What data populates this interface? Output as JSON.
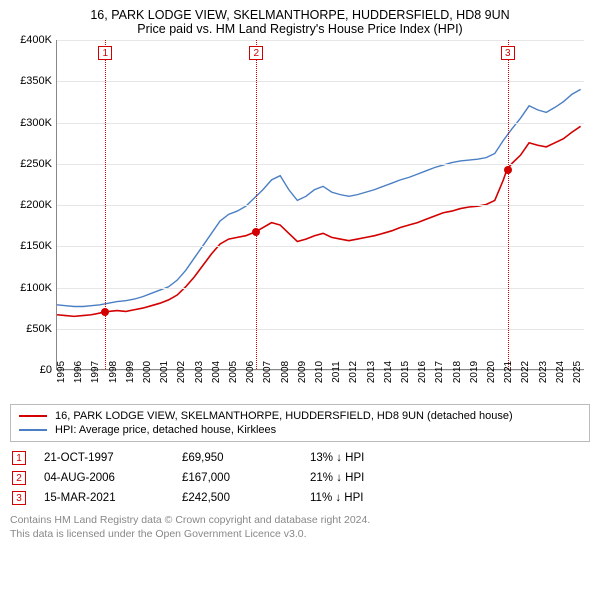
{
  "titles": {
    "line1": "16, PARK LODGE VIEW, SKELMANTHORPE, HUDDERSFIELD, HD8 9UN",
    "line2": "Price paid vs. HM Land Registry's House Price Index (HPI)"
  },
  "chart": {
    "type": "line",
    "background_color": "#ffffff",
    "grid_color": "#e6e6e6",
    "axis_color": "#888888",
    "xlim": [
      1995,
      2025.7
    ],
    "ylim": [
      0,
      400000
    ],
    "y_ticks": [
      0,
      50000,
      100000,
      150000,
      200000,
      250000,
      300000,
      350000,
      400000
    ],
    "y_tick_labels": [
      "£0",
      "£50K",
      "£100K",
      "£150K",
      "£200K",
      "£250K",
      "£300K",
      "£350K",
      "£400K"
    ],
    "y_label_fontsize": 11,
    "x_ticks": [
      1995,
      1996,
      1997,
      1998,
      1999,
      2000,
      2001,
      2002,
      2003,
      2004,
      2005,
      2006,
      2007,
      2008,
      2009,
      2010,
      2011,
      2012,
      2013,
      2014,
      2015,
      2016,
      2017,
      2018,
      2019,
      2020,
      2021,
      2022,
      2023,
      2024,
      2025
    ],
    "x_tick_labels": [
      "1995",
      "1996",
      "1997",
      "1998",
      "1999",
      "2000",
      "2001",
      "2002",
      "2003",
      "2004",
      "2005",
      "2006",
      "2007",
      "2008",
      "2009",
      "2010",
      "2011",
      "2012",
      "2013",
      "2014",
      "2015",
      "2016",
      "2017",
      "2018",
      "2019",
      "2020",
      "2021",
      "2022",
      "2023",
      "2024",
      "2025"
    ],
    "x_label_fontsize": 10,
    "x_label_rotation": -90,
    "series": [
      {
        "name": "property",
        "label": "16, PARK LODGE VIEW, SKELMANTHORPE, HUDDERSFIELD, HD8 9UN (detached house)",
        "color": "#d30000",
        "line_width": 1.6,
        "data": [
          [
            1995.0,
            66000
          ],
          [
            1995.5,
            65000
          ],
          [
            1996.0,
            64000
          ],
          [
            1996.5,
            65000
          ],
          [
            1997.0,
            66000
          ],
          [
            1997.5,
            68000
          ],
          [
            1997.81,
            69950
          ],
          [
            1998.0,
            70000
          ],
          [
            1998.5,
            71000
          ],
          [
            1999.0,
            70000
          ],
          [
            1999.5,
            72000
          ],
          [
            2000.0,
            74000
          ],
          [
            2000.5,
            77000
          ],
          [
            2001.0,
            80000
          ],
          [
            2001.5,
            84000
          ],
          [
            2002.0,
            90000
          ],
          [
            2002.5,
            100000
          ],
          [
            2003.0,
            112000
          ],
          [
            2003.5,
            126000
          ],
          [
            2004.0,
            140000
          ],
          [
            2004.5,
            152000
          ],
          [
            2005.0,
            158000
          ],
          [
            2005.5,
            160000
          ],
          [
            2006.0,
            162000
          ],
          [
            2006.59,
            167000
          ],
          [
            2007.0,
            172000
          ],
          [
            2007.5,
            178000
          ],
          [
            2008.0,
            175000
          ],
          [
            2008.5,
            165000
          ],
          [
            2009.0,
            155000
          ],
          [
            2009.5,
            158000
          ],
          [
            2010.0,
            162000
          ],
          [
            2010.5,
            165000
          ],
          [
            2011.0,
            160000
          ],
          [
            2011.5,
            158000
          ],
          [
            2012.0,
            156000
          ],
          [
            2012.5,
            158000
          ],
          [
            2013.0,
            160000
          ],
          [
            2013.5,
            162000
          ],
          [
            2014.0,
            165000
          ],
          [
            2014.5,
            168000
          ],
          [
            2015.0,
            172000
          ],
          [
            2015.5,
            175000
          ],
          [
            2016.0,
            178000
          ],
          [
            2016.5,
            182000
          ],
          [
            2017.0,
            186000
          ],
          [
            2017.5,
            190000
          ],
          [
            2018.0,
            192000
          ],
          [
            2018.5,
            195000
          ],
          [
            2019.0,
            197000
          ],
          [
            2019.5,
            198000
          ],
          [
            2020.0,
            200000
          ],
          [
            2020.5,
            205000
          ],
          [
            2021.0,
            230000
          ],
          [
            2021.21,
            242500
          ],
          [
            2021.5,
            250000
          ],
          [
            2022.0,
            260000
          ],
          [
            2022.5,
            275000
          ],
          [
            2023.0,
            272000
          ],
          [
            2023.5,
            270000
          ],
          [
            2024.0,
            275000
          ],
          [
            2024.5,
            280000
          ],
          [
            2025.0,
            288000
          ],
          [
            2025.5,
            295000
          ]
        ]
      },
      {
        "name": "hpi",
        "label": "HPI: Average price, detached house, Kirklees",
        "color": "#4a7fc4",
        "line_width": 1.4,
        "data": [
          [
            1995.0,
            78000
          ],
          [
            1995.5,
            77000
          ],
          [
            1996.0,
            76000
          ],
          [
            1996.5,
            76000
          ],
          [
            1997.0,
            77000
          ],
          [
            1997.5,
            78000
          ],
          [
            1998.0,
            80000
          ],
          [
            1998.5,
            82000
          ],
          [
            1999.0,
            83000
          ],
          [
            1999.5,
            85000
          ],
          [
            2000.0,
            88000
          ],
          [
            2000.5,
            92000
          ],
          [
            2001.0,
            96000
          ],
          [
            2001.5,
            100000
          ],
          [
            2002.0,
            108000
          ],
          [
            2002.5,
            120000
          ],
          [
            2003.0,
            135000
          ],
          [
            2003.5,
            150000
          ],
          [
            2004.0,
            165000
          ],
          [
            2004.5,
            180000
          ],
          [
            2005.0,
            188000
          ],
          [
            2005.5,
            192000
          ],
          [
            2006.0,
            198000
          ],
          [
            2006.5,
            208000
          ],
          [
            2007.0,
            218000
          ],
          [
            2007.5,
            230000
          ],
          [
            2008.0,
            235000
          ],
          [
            2008.5,
            218000
          ],
          [
            2009.0,
            205000
          ],
          [
            2009.5,
            210000
          ],
          [
            2010.0,
            218000
          ],
          [
            2010.5,
            222000
          ],
          [
            2011.0,
            215000
          ],
          [
            2011.5,
            212000
          ],
          [
            2012.0,
            210000
          ],
          [
            2012.5,
            212000
          ],
          [
            2013.0,
            215000
          ],
          [
            2013.5,
            218000
          ],
          [
            2014.0,
            222000
          ],
          [
            2014.5,
            226000
          ],
          [
            2015.0,
            230000
          ],
          [
            2015.5,
            233000
          ],
          [
            2016.0,
            237000
          ],
          [
            2016.5,
            241000
          ],
          [
            2017.0,
            245000
          ],
          [
            2017.5,
            248000
          ],
          [
            2018.0,
            251000
          ],
          [
            2018.5,
            253000
          ],
          [
            2019.0,
            254000
          ],
          [
            2019.5,
            255000
          ],
          [
            2020.0,
            257000
          ],
          [
            2020.5,
            262000
          ],
          [
            2021.0,
            278000
          ],
          [
            2021.5,
            292000
          ],
          [
            2022.0,
            305000
          ],
          [
            2022.5,
            320000
          ],
          [
            2023.0,
            315000
          ],
          [
            2023.5,
            312000
          ],
          [
            2024.0,
            318000
          ],
          [
            2024.5,
            325000
          ],
          [
            2025.0,
            334000
          ],
          [
            2025.5,
            340000
          ]
        ]
      }
    ],
    "markers": [
      {
        "n": "1",
        "x": 1997.81,
        "y": 69950,
        "color": "#d30000"
      },
      {
        "n": "2",
        "x": 2006.59,
        "y": 167000,
        "color": "#d30000"
      },
      {
        "n": "3",
        "x": 2021.21,
        "y": 242500,
        "color": "#d30000"
      }
    ]
  },
  "legend": {
    "items": [
      {
        "color": "#d30000",
        "label": "16, PARK LODGE VIEW, SKELMANTHORPE, HUDDERSFIELD, HD8 9UN (detached house)"
      },
      {
        "color": "#4a7fc4",
        "label": "HPI: Average price, detached house, Kirklees"
      }
    ]
  },
  "transactions": [
    {
      "n": "1",
      "date": "21-OCT-1997",
      "price": "£69,950",
      "pct": "13% ↓ HPI",
      "color": "#d30000"
    },
    {
      "n": "2",
      "date": "04-AUG-2006",
      "price": "£167,000",
      "pct": "21% ↓ HPI",
      "color": "#d30000"
    },
    {
      "n": "3",
      "date": "15-MAR-2021",
      "price": "£242,500",
      "pct": "11% ↓ HPI",
      "color": "#d30000"
    }
  ],
  "footnote": {
    "line1": "Contains HM Land Registry data © Crown copyright and database right 2024.",
    "line2": "This data is licensed under the Open Government Licence v3.0."
  }
}
